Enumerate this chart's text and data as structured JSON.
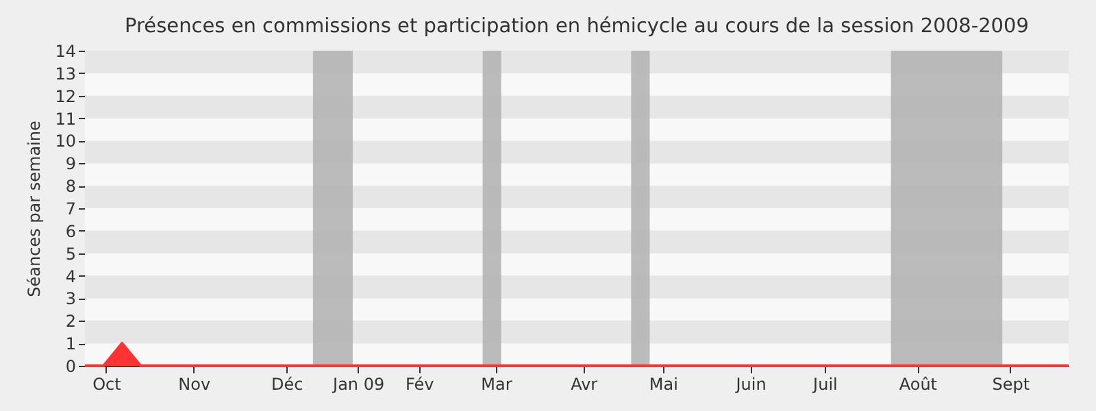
{
  "chart_data": {
    "type": "area",
    "title": "Présences en commissions et participation en hémicycle au cours de la session 2008-2009",
    "ylabel": "Séances par semaine",
    "x": [
      "2008-09-29",
      "2008-10-06",
      "2008-10-13",
      "2008-10-20",
      "2008-10-27",
      "2008-11-03",
      "2008-11-10",
      "2008-11-17",
      "2008-11-24",
      "2008-12-01",
      "2008-12-08",
      "2008-12-15",
      "2008-12-22",
      "2008-12-29",
      "2009-01-05",
      "2009-01-12",
      "2009-01-19",
      "2009-01-26",
      "2009-02-02",
      "2009-02-09",
      "2009-02-16",
      "2009-02-23",
      "2009-03-02",
      "2009-03-09",
      "2009-03-16",
      "2009-03-23",
      "2009-03-30",
      "2009-04-06",
      "2009-04-13",
      "2009-04-20",
      "2009-04-27",
      "2009-05-04",
      "2009-05-11",
      "2009-05-18",
      "2009-05-25",
      "2009-06-01",
      "2009-06-08",
      "2009-06-15",
      "2009-06-22",
      "2009-06-29",
      "2009-07-06",
      "2009-07-13",
      "2009-07-20",
      "2009-07-27",
      "2009-08-03",
      "2009-08-10",
      "2009-08-17",
      "2009-08-24",
      "2009-08-31",
      "2009-09-07",
      "2009-09-14",
      "2009-09-21",
      "2009-09-28",
      "2009-10-05"
    ],
    "series": [
      {
        "color": "#ff3333",
        "values": [
          0,
          0,
          1,
          0,
          0,
          0,
          0,
          0,
          0,
          0,
          0,
          0,
          0,
          0,
          0,
          0,
          0,
          0,
          0,
          0,
          0,
          0,
          0,
          0,
          0,
          0,
          0,
          0,
          0,
          0,
          0,
          0,
          0,
          0,
          0,
          0,
          0,
          0,
          0,
          0,
          0,
          0,
          0,
          0,
          0,
          0,
          0,
          0,
          0,
          0,
          0,
          0,
          0,
          0
        ]
      }
    ],
    "xlim": [
      "2008-09-29",
      "2009-10-05"
    ],
    "xticks": [
      {
        "value": "2008-10-07",
        "label": "Oct"
      },
      {
        "value": "2008-11-09",
        "label": "Nov"
      },
      {
        "value": "2008-12-14",
        "label": "Déc"
      },
      {
        "value": "2009-01-10",
        "label": "Jan 09"
      },
      {
        "value": "2009-02-02",
        "label": "Fév"
      },
      {
        "value": "2009-03-03",
        "label": "Mar"
      },
      {
        "value": "2009-04-05",
        "label": "Avr"
      },
      {
        "value": "2009-05-05",
        "label": "Mai"
      },
      {
        "value": "2009-06-07",
        "label": "Juin"
      },
      {
        "value": "2009-07-05",
        "label": "Juil"
      },
      {
        "value": "2009-08-09",
        "label": "Août"
      },
      {
        "value": "2009-09-13",
        "label": "Sept"
      }
    ],
    "ylim": [
      0,
      14
    ],
    "yticks": [
      0,
      1,
      2,
      3,
      4,
      5,
      6,
      7,
      8,
      9,
      10,
      11,
      12,
      13,
      14
    ],
    "bands": [
      {
        "axis": "x",
        "from": "2008-12-24",
        "to": "2009-01-08",
        "color": "#b4b4b4"
      },
      {
        "axis": "x",
        "from": "2009-02-26",
        "to": "2009-03-05",
        "color": "#b4b4b4"
      },
      {
        "axis": "x",
        "from": "2009-04-23",
        "to": "2009-04-30",
        "color": "#b4b4b4"
      },
      {
        "axis": "x",
        "from": "2009-07-30",
        "to": "2009-09-10",
        "color": "#b4b4b4"
      }
    ],
    "grid": "y"
  }
}
